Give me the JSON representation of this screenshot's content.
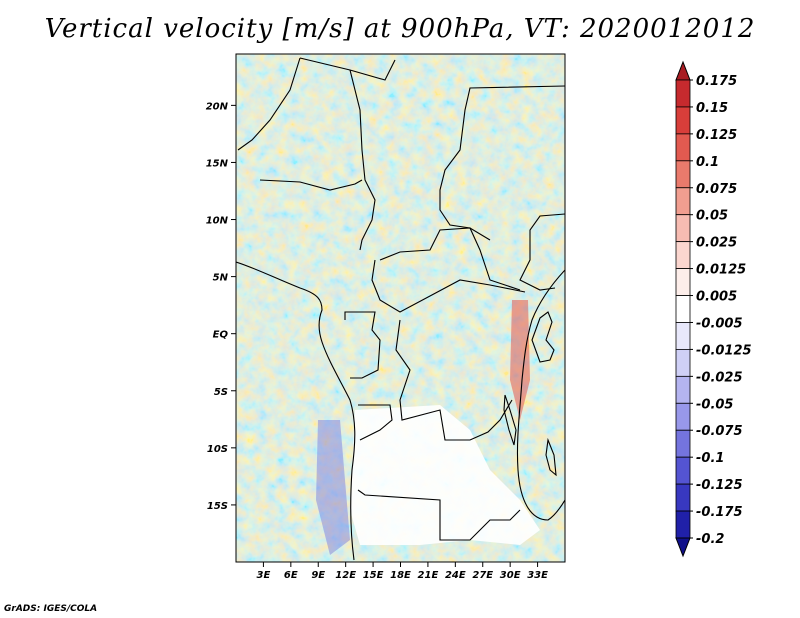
{
  "title": "Vertical velocity [m/s] at 900hPa, VT: 2020012012",
  "credit": "GrADS: IGES/COLA",
  "map": {
    "lon_range": [
      0,
      36
    ],
    "lat_range": [
      -20,
      24.5
    ],
    "lon_ticks": [
      3,
      6,
      9,
      12,
      15,
      18,
      21,
      24,
      27,
      30,
      33
    ],
    "lon_tick_labels": [
      "3E",
      "6E",
      "9E",
      "12E",
      "15E",
      "18E",
      "21E",
      "24E",
      "27E",
      "30E",
      "33E"
    ],
    "lat_ticks": [
      20,
      15,
      10,
      5,
      0,
      -5,
      -10,
      -15
    ],
    "lat_tick_labels": [
      "20N",
      "15N",
      "10N",
      "5N",
      "EQ",
      "5S",
      "10S",
      "15S"
    ],
    "field": "vertical velocity",
    "units": "m/s",
    "level": "900hPa",
    "valid_time": "2020012012"
  },
  "colorbar": {
    "levels": [
      "0.175",
      "0.15",
      "0.125",
      "0.1",
      "0.075",
      "0.05",
      "0.025",
      "0.0125",
      "0.005",
      "-0.005",
      "-0.0125",
      "-0.025",
      "-0.05",
      "-0.075",
      "-0.1",
      "-0.125",
      "-0.175",
      "-0.2"
    ],
    "colors": [
      "#a81c22",
      "#c62a2e",
      "#d83e3a",
      "#e25a50",
      "#ea7a6c",
      "#f19e90",
      "#f7bcb2",
      "#fbd6cf",
      "#fdeeea",
      "#ffffff",
      "#e8e8fb",
      "#cfd0f6",
      "#b4b4f0",
      "#9898ea",
      "#7474de",
      "#5454d2",
      "#3838c0",
      "#2020a8",
      "#10108a"
    ]
  }
}
